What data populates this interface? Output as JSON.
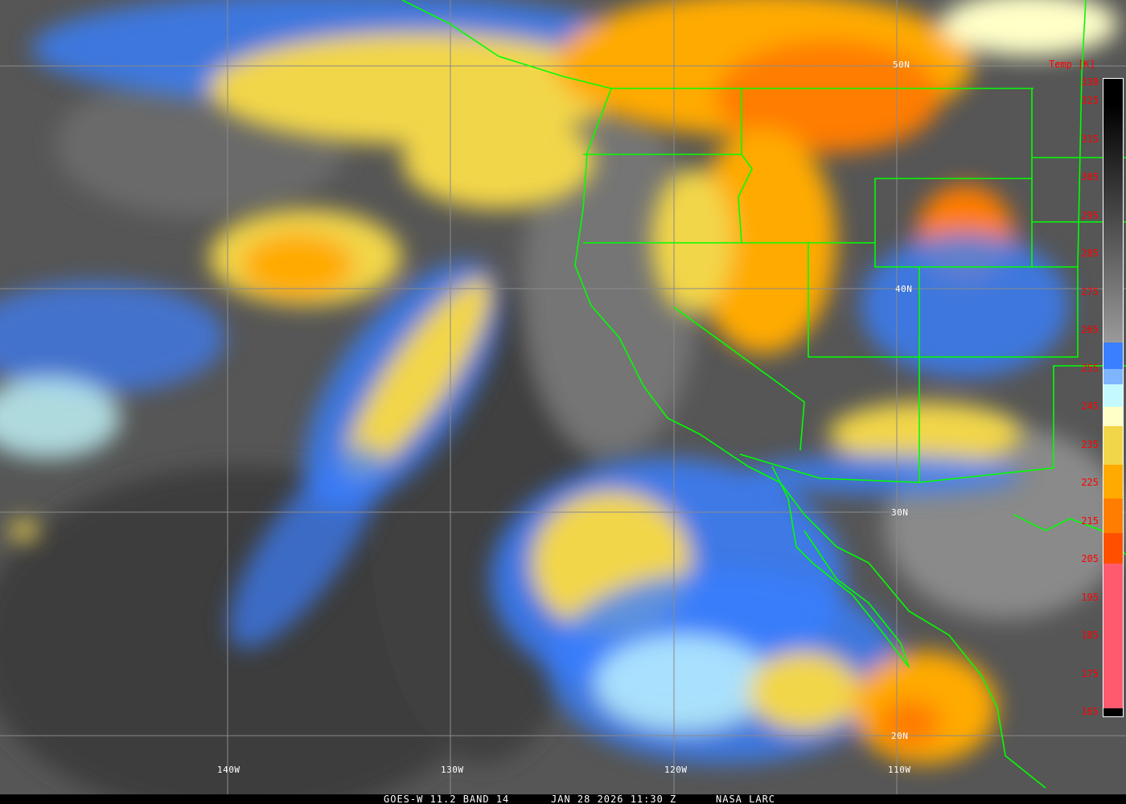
{
  "caption": {
    "satellite": "GOES-W 11.2 BAND 14",
    "datetime": "JAN 28 2026 11:30 Z",
    "credit": "NASA LARC"
  },
  "grid_labels": {
    "lat": [
      "50N",
      "40N",
      "30N",
      "20N"
    ],
    "lon": [
      "140W",
      "130W",
      "120W",
      "110W"
    ]
  },
  "colorbar": {
    "title": "Temp [K]",
    "ticks": [
      "330",
      "325",
      "315",
      "305",
      "295",
      "285",
      "275",
      "265",
      "255",
      "245",
      "235",
      "225",
      "215",
      "205",
      "195",
      "185",
      "175",
      "165"
    ],
    "range": [
      164,
      331
    ],
    "stops": [
      {
        "from": 331,
        "to": 262,
        "color": "gradient #000000 to #9a9a9a"
      },
      {
        "from": 262,
        "to": 255,
        "color": "#3a7fff"
      },
      {
        "from": 255,
        "to": 251,
        "color": "#7fb4ff"
      },
      {
        "from": 251,
        "to": 245,
        "color": "#c4faff"
      },
      {
        "from": 245,
        "to": 240,
        "color": "#ffffc8"
      },
      {
        "from": 240,
        "to": 230,
        "color": "#f2d64a"
      },
      {
        "from": 230,
        "to": 221,
        "color": "#ffaa00"
      },
      {
        "from": 221,
        "to": 212,
        "color": "#ff7d00"
      },
      {
        "from": 212,
        "to": 204,
        "color": "#ff5000"
      },
      {
        "from": 204,
        "to": 166,
        "color": "#ff5a6e"
      }
    ]
  },
  "colors": {
    "borders": "#00ff00",
    "grid": "#8a8a8a",
    "label_red": "#ff0000"
  }
}
